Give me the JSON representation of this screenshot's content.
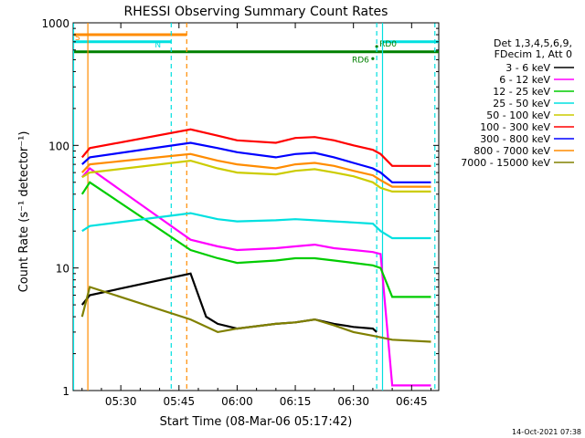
{
  "chart_data": {
    "type": "line",
    "title": "RHESSI Observing Summary Count Rates",
    "xlabel": "Start Time (08-Mar-06 05:17:42)",
    "ylabel": "Count Rate (s⁻¹ detector⁻¹)",
    "yscale": "log",
    "ylim": [
      1,
      1000
    ],
    "xlim": [
      "05:17:42",
      "06:52:00"
    ],
    "x_ticks": [
      "05:30",
      "05:45",
      "06:00",
      "06:15",
      "06:30",
      "06:45"
    ],
    "y_ticks": [
      "1",
      "10",
      "100",
      "1000"
    ],
    "legend_header": [
      "Det 1,3,4,5,6,9,",
      "FDecim 1, Att 0"
    ],
    "legend_position": "right",
    "footer_timestamp": "14-Oct-2021 07:38",
    "series": [
      {
        "name": "3 - 6 keV",
        "color": "#000000",
        "x": [
          "05:20",
          "05:22",
          "05:48",
          "05:50",
          "05:52",
          "05:55",
          "06:00",
          "06:10",
          "06:15",
          "06:20",
          "06:25",
          "06:30",
          "06:35",
          "06:36"
        ],
        "y": [
          5,
          6,
          9,
          6,
          4,
          3.5,
          3.2,
          3.5,
          3.6,
          3.8,
          3.5,
          3.3,
          3.2,
          3.0
        ]
      },
      {
        "name": "6 - 12 keV",
        "color": "#ff00ff",
        "x": [
          "05:20",
          "05:22",
          "05:48",
          "05:55",
          "06:00",
          "06:10",
          "06:15",
          "06:20",
          "06:25",
          "06:30",
          "06:35",
          "06:37",
          "06:40",
          "06:50"
        ],
        "y": [
          55,
          65,
          17,
          15,
          14,
          14.5,
          15,
          15.5,
          14.5,
          14,
          13.5,
          13,
          1.1,
          1.1
        ]
      },
      {
        "name": "12 - 25 keV",
        "color": "#00cc00",
        "x": [
          "05:20",
          "05:22",
          "05:48",
          "05:55",
          "06:00",
          "06:10",
          "06:15",
          "06:20",
          "06:25",
          "06:30",
          "06:35",
          "06:37",
          "06:40",
          "06:50"
        ],
        "y": [
          40,
          50,
          14,
          12,
          11,
          11.5,
          12,
          12,
          11.5,
          11,
          10.5,
          10,
          5.8,
          5.8
        ]
      },
      {
        "name": "25 - 50 keV",
        "color": "#00e0e0",
        "x": [
          "05:20",
          "05:22",
          "05:48",
          "05:55",
          "06:00",
          "06:10",
          "06:15",
          "06:20",
          "06:25",
          "06:30",
          "06:35",
          "06:37",
          "06:40",
          "06:50"
        ],
        "y": [
          20,
          22,
          28,
          25,
          24,
          24.5,
          25,
          24.5,
          24,
          23.5,
          23,
          20,
          17.5,
          17.5
        ]
      },
      {
        "name": "50 - 100 keV",
        "color": "#cccc00",
        "x": [
          "05:20",
          "05:22",
          "05:48",
          "05:55",
          "06:00",
          "06:10",
          "06:15",
          "06:20",
          "06:25",
          "06:30",
          "06:35",
          "06:37",
          "06:40",
          "06:50"
        ],
        "y": [
          55,
          60,
          75,
          65,
          60,
          58,
          62,
          64,
          60,
          56,
          50,
          45,
          42,
          42
        ]
      },
      {
        "name": "100 - 300 keV",
        "color": "#ff0000",
        "x": [
          "05:20",
          "05:22",
          "05:48",
          "05:55",
          "06:00",
          "06:10",
          "06:15",
          "06:20",
          "06:25",
          "06:30",
          "06:35",
          "06:37",
          "06:40",
          "06:50"
        ],
        "y": [
          80,
          95,
          135,
          120,
          110,
          105,
          115,
          117,
          110,
          100,
          92,
          85,
          68,
          68
        ]
      },
      {
        "name": "300 - 800 keV",
        "color": "#0000ff",
        "x": [
          "05:20",
          "05:22",
          "05:48",
          "05:55",
          "06:00",
          "06:10",
          "06:15",
          "06:20",
          "06:25",
          "06:30",
          "06:35",
          "06:37",
          "06:40",
          "06:50"
        ],
        "y": [
          70,
          80,
          105,
          95,
          88,
          80,
          85,
          87,
          80,
          72,
          65,
          60,
          50,
          50
        ]
      },
      {
        "name": "800 - 7000 keV",
        "color": "#ff8c00",
        "x": [
          "05:20",
          "05:22",
          "05:48",
          "05:55",
          "06:00",
          "06:10",
          "06:15",
          "06:20",
          "06:25",
          "06:30",
          "06:35",
          "06:37",
          "06:40",
          "06:50"
        ],
        "y": [
          60,
          70,
          85,
          75,
          70,
          65,
          70,
          72,
          68,
          62,
          57,
          52,
          46,
          46
        ]
      },
      {
        "name": "7000 - 15000 keV",
        "color": "#808000",
        "x": [
          "05:20",
          "05:22",
          "05:48",
          "05:55",
          "06:00",
          "06:10",
          "06:15",
          "06:20",
          "06:25",
          "06:30",
          "06:35",
          "06:40",
          "06:50"
        ],
        "y": [
          4,
          7,
          3.8,
          3.0,
          3.2,
          3.5,
          3.6,
          3.8,
          3.4,
          3.0,
          2.8,
          2.6,
          2.5
        ]
      }
    ],
    "flag_bars": [
      {
        "label": "S",
        "color": "#ff8c00",
        "x_start": "05:17:42",
        "x_end": "05:47:00",
        "level": 800
      },
      {
        "label": "N",
        "color": "#00e0e0",
        "x_start": "05:17:42",
        "x_end": "05:43:00",
        "level": 700
      },
      {
        "label": "RD6",
        "color": "#008000",
        "x_start": "05:17:42",
        "x_end": "06:52:00",
        "level": 580
      },
      {
        "label": "N",
        "color": "#00e0e0",
        "x_start": "06:37:30",
        "x_end": "06:52:00",
        "level": 700
      }
    ],
    "markers": [
      {
        "label": "RD0",
        "x": "06:36:00",
        "y": 640
      },
      {
        "label": "RD6",
        "x": "06:35:00",
        "y": 510
      }
    ],
    "vertical_lines": [
      {
        "x": "05:21:30",
        "color": "#ff8c00",
        "style": "solid"
      },
      {
        "x": "05:17:42",
        "color": "#00e0e0",
        "style": "solid"
      },
      {
        "x": "05:43:00",
        "color": "#00e0e0",
        "style": "dashed"
      },
      {
        "x": "05:47:00",
        "color": "#ff8c00",
        "style": "dashed"
      },
      {
        "x": "06:36:00",
        "color": "#00e0e0",
        "style": "dashed"
      },
      {
        "x": "06:37:30",
        "color": "#00e0e0",
        "style": "solid"
      },
      {
        "x": "06:51:00",
        "color": "#00e0e0",
        "style": "dashed"
      }
    ]
  }
}
